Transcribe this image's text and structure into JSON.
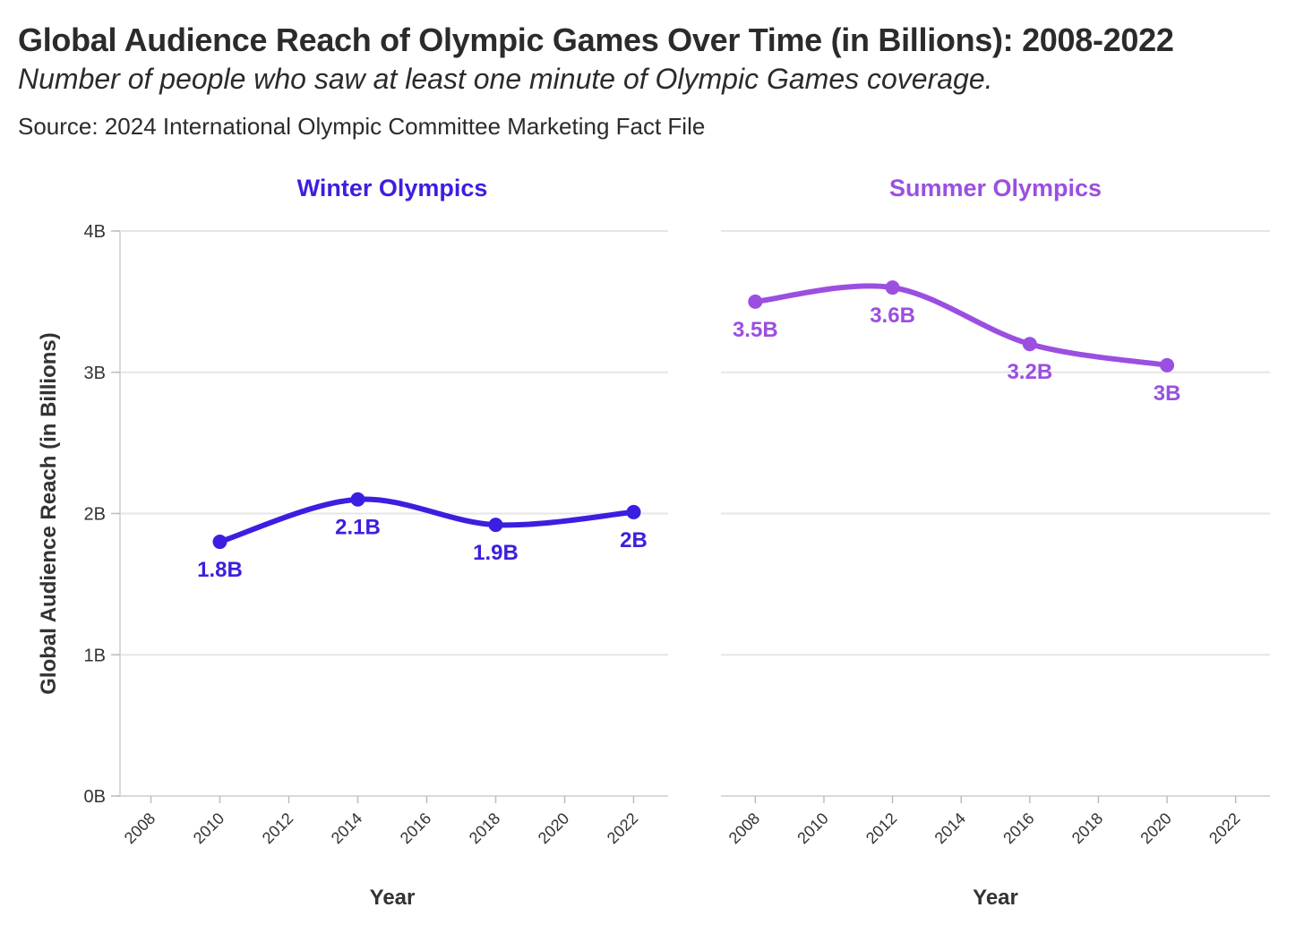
{
  "title": "Global Audience Reach of Olympic Games Over Time (in Billions): 2008-2022",
  "subtitle": "Number of people who saw at least one minute of Olympic Games coverage.",
  "source": "Source: 2024 International Olympic Committee Marketing Fact File",
  "chart_data": {
    "type": "line",
    "ylabel": "Global Audience Reach (in Billions)",
    "xlabel": "Year",
    "ylim": [
      0,
      4
    ],
    "yticks": [
      0,
      1,
      2,
      3,
      4
    ],
    "ytick_labels": [
      "0B",
      "1B",
      "2B",
      "3B",
      "4B"
    ],
    "xlim": [
      2007,
      2023
    ],
    "xticks": [
      2008,
      2010,
      2012,
      2014,
      2016,
      2018,
      2020,
      2022
    ],
    "grid": true,
    "panels": [
      {
        "title": "Winter Olympics",
        "color": "#3b1fe0",
        "x": [
          2010,
          2014,
          2018,
          2022
        ],
        "values": [
          1.8,
          2.1,
          1.92,
          2.01
        ],
        "labels": [
          "1.8B",
          "2.1B",
          "1.9B",
          "2B"
        ]
      },
      {
        "title": "Summer Olympics",
        "color": "#9b4fe0",
        "x": [
          2008,
          2012,
          2016,
          2020
        ],
        "values": [
          3.5,
          3.6,
          3.2,
          3.05
        ],
        "labels": [
          "3.5B",
          "3.6B",
          "3.2B",
          "3B"
        ]
      }
    ]
  }
}
